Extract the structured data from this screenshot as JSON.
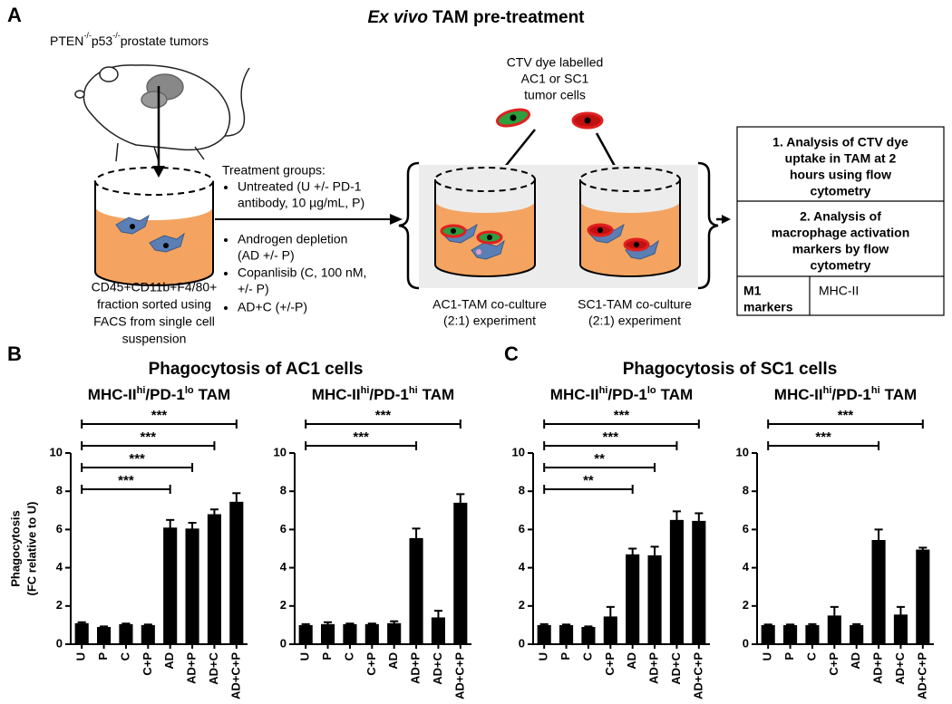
{
  "panel_a": {
    "label": "A",
    "title_italic": "Ex vivo",
    "title": "TAM pre-treatment",
    "tumor_label": [
      "PTEN",
      "-/-",
      "p53",
      "-/-",
      "prostate tumors"
    ],
    "dye_label": [
      "CTV dye labelled",
      "AC1 or SC1",
      "tumor cells"
    ],
    "treatment_title": "Treatment groups:",
    "treatments": [
      [
        "Untreated (U +/- PD-1",
        "antibody, 10 µg/mL, P)"
      ],
      [
        "Androgen depletion",
        "(AD +/- P)"
      ],
      [
        "Copanlisib (C, 100 nM,",
        "+/- P)"
      ],
      [
        "AD+C (+/-P)"
      ]
    ],
    "sorted_label": [
      "CD45+CD11b+F4/80+",
      "fraction sorted using",
      "FACS from single cell",
      "suspension"
    ],
    "cocultures": [
      [
        "AC1-TAM co-culture",
        "(2:1) experiment"
      ],
      [
        "SC1-TAM co-culture",
        "(2:1) experiment"
      ]
    ],
    "analysis_1": [
      "1. Analysis of CTV dye",
      "uptake in TAM at 2",
      "hours using flow",
      "cytometry"
    ],
    "analysis_2": [
      "2. Analysis of",
      "macrophage activation",
      "markers by flow",
      "cytometry"
    ],
    "marker_type": [
      "M1",
      "markers"
    ],
    "marker": "MHC-II"
  },
  "panel_b": {
    "label": "B",
    "title": "Phagocytosis of AC1 cells"
  },
  "panel_c": {
    "label": "C",
    "title": "Phagocytosis of SC1 cells"
  },
  "chart_data": [
    {
      "type": "bar",
      "title": [
        "MHC-II",
        "hi",
        "/PD-1",
        "lo",
        "TAM"
      ],
      "ylabel": [
        "Phagocytosis",
        "(FC relative to U)"
      ],
      "categories": [
        "U",
        "P",
        "C",
        "C+P",
        "AD",
        "AD+P",
        "AD+C",
        "AD+C+P"
      ],
      "values": [
        1.1,
        0.9,
        1.05,
        1.0,
        6.1,
        6.05,
        6.8,
        7.45
      ],
      "errors": [
        0.05,
        0.03,
        0.03,
        0.03,
        0.4,
        0.3,
        0.25,
        0.45
      ],
      "color": "#000000",
      "ylim": [
        0,
        10
      ],
      "yticks": [
        0,
        2,
        4,
        6,
        8,
        10
      ],
      "brackets": [
        {
          "from": "U",
          "to": "AD+C+P",
          "label": "***"
        },
        {
          "from": "U",
          "to": "AD+C",
          "label": "***"
        },
        {
          "from": "U",
          "to": "AD+P",
          "label": "***"
        },
        {
          "from": "U",
          "to": "AD",
          "label": "***"
        }
      ]
    },
    {
      "type": "bar",
      "title": [
        "MHC-II",
        "hi",
        "/PD-1",
        "hi",
        "TAM"
      ],
      "categories": [
        "U",
        "P",
        "C",
        "C+P",
        "AD",
        "AD+P",
        "AD+C",
        "AD+C+P"
      ],
      "values": [
        1.0,
        1.05,
        1.05,
        1.05,
        1.1,
        5.55,
        1.4,
        7.4
      ],
      "errors": [
        0.05,
        0.1,
        0.03,
        0.03,
        0.1,
        0.5,
        0.35,
        0.45
      ],
      "color": "#000000",
      "ylim": [
        0,
        10
      ],
      "yticks": [
        0,
        2,
        4,
        6,
        8,
        10
      ],
      "brackets": [
        {
          "from": "U",
          "to": "AD+C+P",
          "label": "***"
        },
        {
          "from": "U",
          "to": "AD+P",
          "label": "***"
        }
      ]
    },
    {
      "type": "bar",
      "title": [
        "MHC-II",
        "hi",
        "/PD-1",
        "lo",
        "TAM"
      ],
      "categories": [
        "U",
        "P",
        "C",
        "C+P",
        "AD",
        "AD+P",
        "AD+C",
        "AD+C+P"
      ],
      "values": [
        1.0,
        1.0,
        0.9,
        1.45,
        4.7,
        4.65,
        6.5,
        6.45
      ],
      "errors": [
        0.05,
        0.03,
        0.03,
        0.5,
        0.3,
        0.45,
        0.45,
        0.4
      ],
      "color": "#000000",
      "ylim": [
        0,
        10
      ],
      "yticks": [
        0,
        2,
        4,
        6,
        8,
        10
      ],
      "brackets": [
        {
          "from": "U",
          "to": "AD+C+P",
          "label": "***"
        },
        {
          "from": "U",
          "to": "AD+C",
          "label": "***"
        },
        {
          "from": "U",
          "to": "AD+P",
          "label": "**"
        },
        {
          "from": "U",
          "to": "AD",
          "label": "**"
        }
      ]
    },
    {
      "type": "bar",
      "title": [
        "MHC-II",
        "hi",
        "/PD-1",
        "hi",
        "TAM"
      ],
      "categories": [
        "U",
        "P",
        "C",
        "C+P",
        "AD",
        "AD+P",
        "AD+C",
        "AD+C+P"
      ],
      "values": [
        1.0,
        1.0,
        1.0,
        1.5,
        1.0,
        5.45,
        1.55,
        4.95
      ],
      "errors": [
        0.03,
        0.03,
        0.05,
        0.45,
        0.05,
        0.55,
        0.4,
        0.1
      ],
      "color": "#000000",
      "ylim": [
        0,
        10
      ],
      "yticks": [
        0,
        2,
        4,
        6,
        8,
        10
      ],
      "brackets": [
        {
          "from": "U",
          "to": "AD+C+P",
          "label": "***"
        },
        {
          "from": "U",
          "to": "AD+P",
          "label": "***"
        }
      ]
    }
  ]
}
